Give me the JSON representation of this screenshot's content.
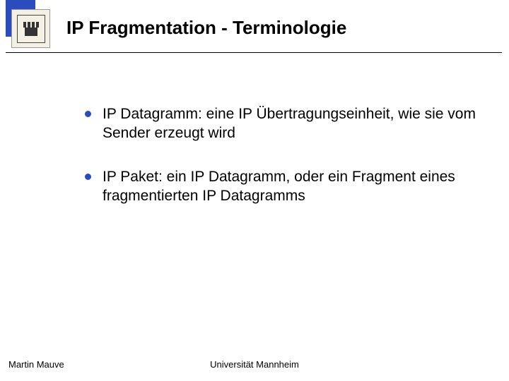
{
  "colors": {
    "accent": "#2a4cbf",
    "text": "#000000",
    "background": "#ffffff",
    "logo_bg": "#f5f0e4"
  },
  "header": {
    "title": "IP Fragmentation - Terminologie"
  },
  "bullets": [
    {
      "text": "IP Datagramm: eine IP Übertragungseinheit, wie sie vom Sender erzeugt wird"
    },
    {
      "text": "IP Paket: ein IP Datagramm, oder ein Fragment eines fragmentierten IP Datagramms"
    }
  ],
  "footer": {
    "left": "Martin Mauve",
    "center": "Universität Mannheim",
    "right": ""
  },
  "typography": {
    "title_fontsize": 26,
    "body_fontsize": 21,
    "footer_fontsize": 13
  }
}
